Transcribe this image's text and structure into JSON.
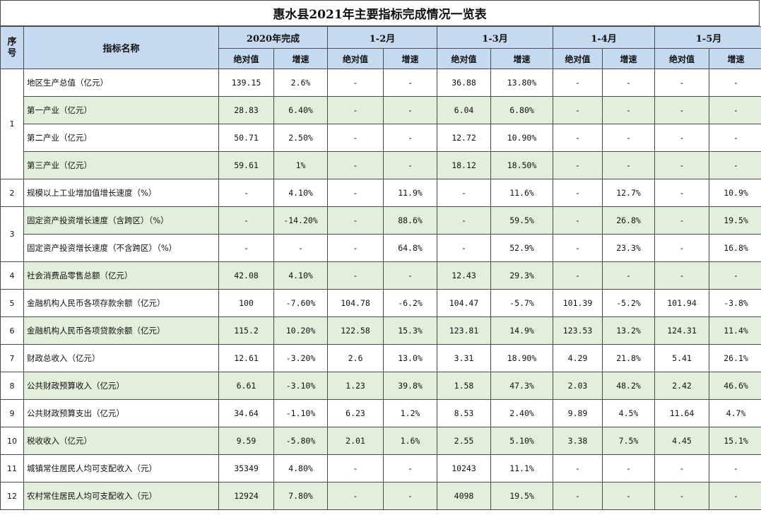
{
  "title": "惠水县2021年主要指标完成情况一览表",
  "header": {
    "seq": "序号",
    "name": "指标名称",
    "periods": [
      "2020年完成",
      "1-2月",
      "1-3月",
      "1-4月",
      "1-5月"
    ],
    "abs": "绝对值",
    "growth": "增速"
  },
  "rows": [
    {
      "seq": "1",
      "name": "地区生产总值（亿元）",
      "v": [
        "139.15",
        "2.6%",
        "-",
        "-",
        "36.88",
        "13.80%",
        "-",
        "-",
        "-",
        "-"
      ]
    },
    {
      "seq": "",
      "name": "第一产业（亿元）",
      "v": [
        "28.83",
        "6.40%",
        "-",
        "-",
        "6.04",
        "6.80%",
        "-",
        "-",
        "-",
        "-"
      ]
    },
    {
      "seq": "",
      "name": "第二产业（亿元）",
      "v": [
        "50.71",
        "2.50%",
        "-",
        "-",
        "12.72",
        "10.90%",
        "-",
        "-",
        "-",
        "-"
      ]
    },
    {
      "seq": "",
      "name": "第三产业（亿元）",
      "v": [
        "59.61",
        "1%",
        "-",
        "-",
        "18.12",
        "18.50%",
        "-",
        "-",
        "-",
        "-"
      ]
    },
    {
      "seq": "2",
      "name": "规模以上工业增加值增长速度（%）",
      "v": [
        "-",
        "4.10%",
        "-",
        "11.9%",
        "-",
        "11.6%",
        "-",
        "12.7%",
        "-",
        "10.9%"
      ]
    },
    {
      "seq": "3",
      "name": "固定资产投资增长速度（含跨区）（%）",
      "v": [
        "-",
        "-14.20%",
        "-",
        "88.6%",
        "-",
        "59.5%",
        "-",
        "26.8%",
        "-",
        "19.5%"
      ]
    },
    {
      "seq": "",
      "name": "固定资产投资增长速度（不含跨区）（%）",
      "v": [
        "-",
        "-",
        "-",
        "64.8%",
        "-",
        "52.9%",
        "-",
        "23.3%",
        "-",
        "16.8%"
      ]
    },
    {
      "seq": "4",
      "name": "社会消费品零售总额（亿元）",
      "v": [
        "42.08",
        "4.10%",
        "-",
        "-",
        "12.43",
        "29.3%",
        "-",
        "-",
        "-",
        "-"
      ]
    },
    {
      "seq": "5",
      "name": "金融机构人民币各项存款余额（亿元）",
      "v": [
        "100",
        "-7.60%",
        "104.78",
        "-6.2%",
        "104.47",
        "-5.7%",
        "101.39",
        "-5.2%",
        "101.94",
        "-3.8%"
      ]
    },
    {
      "seq": "6",
      "name": "金融机构人民币各项贷款余额（亿元）",
      "v": [
        "115.2",
        "10.20%",
        "122.58",
        "15.3%",
        "123.81",
        "14.9%",
        "123.53",
        "13.2%",
        "124.31",
        "11.4%"
      ]
    },
    {
      "seq": "7",
      "name": "财政总收入（亿元）",
      "v": [
        "12.61",
        "-3.20%",
        "2.6",
        "13.0%",
        "3.31",
        "18.90%",
        "4.29",
        "21.8%",
        "5.41",
        "26.1%"
      ]
    },
    {
      "seq": "8",
      "name": "公共财政预算收入（亿元）",
      "v": [
        "6.61",
        "-3.10%",
        "1.23",
        "39.8%",
        "1.58",
        "47.3%",
        "2.03",
        "48.2%",
        "2.42",
        "46.6%"
      ]
    },
    {
      "seq": "9",
      "name": "公共财政预算支出（亿元）",
      "v": [
        "34.64",
        "-1.10%",
        "6.23",
        "1.2%",
        "8.53",
        "2.40%",
        "9.89",
        "4.5%",
        "11.64",
        "4.7%"
      ]
    },
    {
      "seq": "10",
      "name": "税收收入（亿元）",
      "v": [
        "9.59",
        "-5.80%",
        "2.01",
        "1.6%",
        "2.55",
        "5.10%",
        "3.38",
        "7.5%",
        "4.45",
        "15.1%"
      ]
    },
    {
      "seq": "11",
      "name": "城镇常住居民人均可支配收入（元）",
      "v": [
        "35349",
        "4.80%",
        "-",
        "-",
        "10243",
        "11.1%",
        "-",
        "-",
        "-",
        "-"
      ]
    },
    {
      "seq": "12",
      "name": "农村常住居民人均可支配收入（元）",
      "v": [
        "12924",
        "7.80%",
        "-",
        "-",
        "4098",
        "19.5%",
        "-",
        "-",
        "-",
        "-"
      ]
    }
  ],
  "colors": {
    "header_bg": "#c5d9f1",
    "band_green": "#e2efda",
    "border": "#4a4a4a"
  }
}
